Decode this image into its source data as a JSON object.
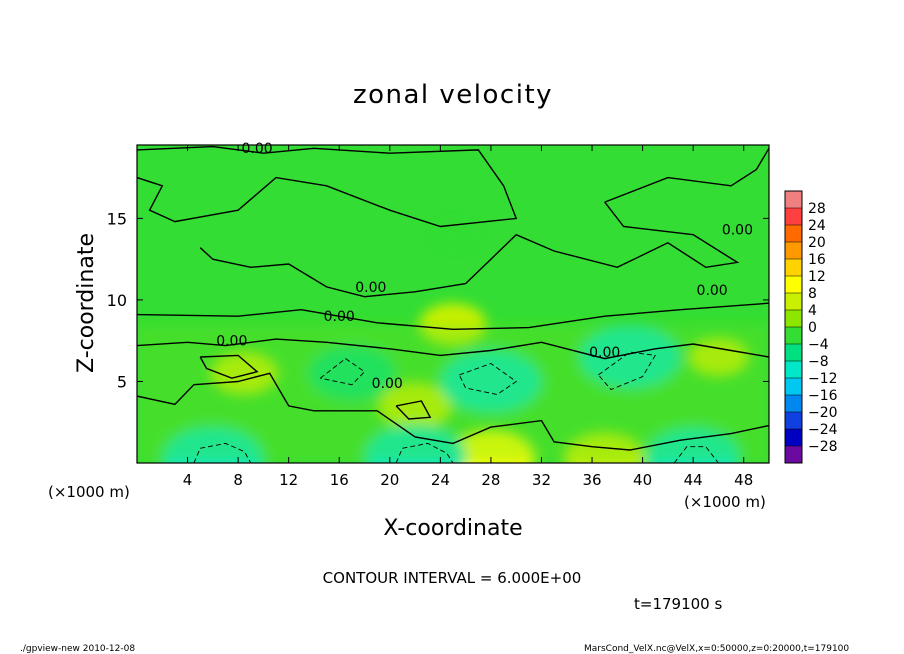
{
  "chart_data": {
    "type": "heatmap",
    "title": "zonal velocity",
    "xlabel": "X-coordinate",
    "ylabel": "Z-coordinate",
    "x_unit_left": "(×1000 m)",
    "x_unit_right": "(×1000 m)",
    "xlim": [
      0,
      50
    ],
    "ylim": [
      0,
      19.5
    ],
    "x_ticks": [
      4,
      8,
      12,
      16,
      20,
      24,
      28,
      32,
      36,
      40,
      44,
      48
    ],
    "x_tick_labels": [
      "4",
      "8",
      "12",
      "16",
      "20",
      "24",
      "28",
      "32",
      "36",
      "40",
      "44",
      "48"
    ],
    "y_ticks": [
      5,
      10,
      15
    ],
    "y_tick_labels": [
      "5",
      "10",
      "15"
    ],
    "colorbar": {
      "levels": [
        -28,
        -24,
        -20,
        -16,
        -12,
        -8,
        -4,
        0,
        4,
        8,
        12,
        16,
        20,
        24,
        28
      ],
      "labels": [
        "28",
        "24",
        "20",
        "16",
        "12",
        "8",
        "4",
        "0",
        "−4",
        "−8",
        "−12",
        "−16",
        "−20",
        "−24",
        "−28"
      ],
      "colors": [
        "#f08080",
        "#ff4040",
        "#ff6a00",
        "#ff9900",
        "#ffd200",
        "#ffff00",
        "#c8f000",
        "#8ce600",
        "#33dd33",
        "#00e080",
        "#00e8c8",
        "#00c8f0",
        "#0088f0",
        "#1040e0",
        "#0000c0",
        "#6a0aa0"
      ]
    },
    "contour_labels": [
      {
        "text": "0.00",
        "x": 9.5,
        "y": 19.0
      },
      {
        "text": "0.00",
        "x": 47.5,
        "y": 14.0
      },
      {
        "text": "0.00",
        "x": 18.5,
        "y": 10.5
      },
      {
        "text": "0.00",
        "x": 16.0,
        "y": 8.7
      },
      {
        "text": "0.00",
        "x": 45.5,
        "y": 10.3
      },
      {
        "text": "0.00",
        "x": 7.5,
        "y": 7.2
      },
      {
        "text": "0.00",
        "x": 37.0,
        "y": 6.5
      },
      {
        "text": "0.00",
        "x": 19.8,
        "y": 4.6
      }
    ],
    "field_features": [
      {
        "kind": "max",
        "x": 22,
        "y": 0.4,
        "value": 9
      },
      {
        "kind": "max",
        "x": 28,
        "y": 0.3,
        "value": 8
      },
      {
        "kind": "max",
        "x": 37,
        "y": 0.3,
        "value": 7
      },
      {
        "kind": "max",
        "x": 8.5,
        "y": 5.5,
        "value": 5
      },
      {
        "kind": "max",
        "x": 22,
        "y": 3.5,
        "value": 6
      },
      {
        "kind": "max",
        "x": 46,
        "y": 6.5,
        "value": 4
      },
      {
        "kind": "min",
        "x": 28,
        "y": 5.0,
        "value": -10
      },
      {
        "kind": "min",
        "x": 39,
        "y": 6.5,
        "value": -10
      },
      {
        "kind": "min",
        "x": 17,
        "y": 5.5,
        "value": -8
      },
      {
        "kind": "min",
        "x": 6,
        "y": 0.3,
        "value": -11
      },
      {
        "kind": "min",
        "x": 22,
        "y": 0.4,
        "value": -10
      },
      {
        "kind": "min",
        "x": 44,
        "y": 0.4,
        "value": -9
      },
      {
        "kind": "max",
        "x": 25,
        "y": 8.5,
        "value": 5
      },
      {
        "kind": "min",
        "x": 25,
        "y": 14,
        "value": -1
      }
    ]
  },
  "annotations": {
    "contour_interval": "CONTOUR INTERVAL = 6.000E+00",
    "time": "t=179100  s",
    "footer_left": "./gpview-new   2010-12-08",
    "footer_right": "MarsCond_VelX.nc@VelX,x=0:50000,z=0:20000,t=179100"
  }
}
